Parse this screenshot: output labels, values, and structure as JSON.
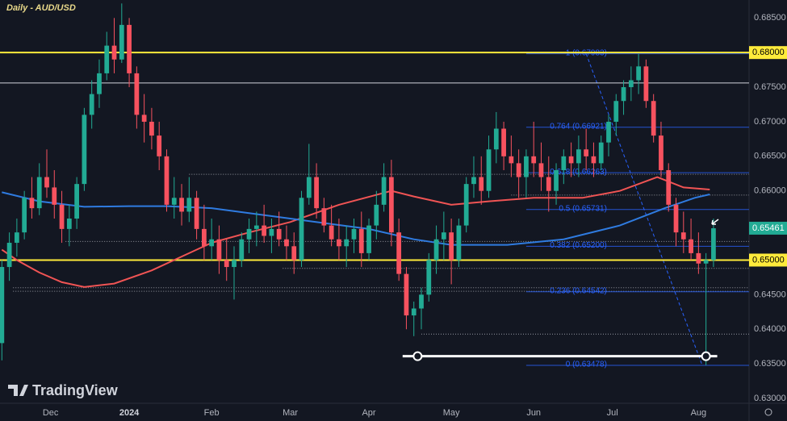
{
  "chart_data": {
    "type": "candlestick",
    "title": "Daily - AUD/USD",
    "up_color": "#22ab94",
    "down_color": "#f7525f",
    "xlim": [
      -0.5,
      199.5
    ],
    "ylim": [
      0.6293,
      0.6876
    ],
    "xticks": [
      {
        "value": 13,
        "label": "Dec"
      },
      {
        "value": 34,
        "label": "2024"
      },
      {
        "value": 56,
        "label": "Feb"
      },
      {
        "value": 77,
        "label": "Mar"
      },
      {
        "value": 98,
        "label": "Apr"
      },
      {
        "value": 120,
        "label": "May"
      },
      {
        "value": 142,
        "label": "Jun"
      },
      {
        "value": 163,
        "label": "Jul"
      },
      {
        "value": 186,
        "label": "Aug"
      }
    ],
    "yticks": [
      {
        "value": 0.685,
        "label": "0.68500"
      },
      {
        "value": 0.675,
        "label": "0.67500"
      },
      {
        "value": 0.67,
        "label": "0.67000"
      },
      {
        "value": 0.665,
        "label": "0.66500"
      },
      {
        "value": 0.66,
        "label": "0.66000"
      },
      {
        "value": 0.645,
        "label": "0.64500"
      },
      {
        "value": 0.64,
        "label": "0.64000"
      },
      {
        "value": 0.635,
        "label": "0.63500"
      },
      {
        "value": 0.63,
        "label": "0.63000"
      }
    ],
    "x": [
      0,
      2,
      4,
      6,
      8,
      10,
      12,
      14,
      16,
      18,
      20,
      22,
      24,
      26,
      28,
      30,
      32,
      34,
      36,
      38,
      40,
      42,
      44,
      46,
      48,
      50,
      52,
      54,
      56,
      58,
      60,
      62,
      64,
      66,
      68,
      70,
      72,
      74,
      76,
      78,
      80,
      82,
      84,
      86,
      88,
      90,
      92,
      94,
      96,
      98,
      100,
      102,
      104,
      106,
      108,
      110,
      112,
      114,
      116,
      118,
      120,
      122,
      124,
      126,
      128,
      130,
      132,
      134,
      136,
      138,
      140,
      142,
      144,
      146,
      148,
      150,
      152,
      154,
      156,
      158,
      160,
      162,
      164,
      166,
      168,
      170,
      172,
      174,
      176,
      178,
      180,
      182,
      184,
      186,
      188,
      190
    ],
    "open": [
      0.638,
      0.649,
      0.6525,
      0.654,
      0.659,
      0.6575,
      0.662,
      0.6605,
      0.658,
      0.6545,
      0.656,
      0.661,
      0.671,
      0.674,
      0.677,
      0.681,
      0.679,
      0.684,
      0.677,
      0.671,
      0.67,
      0.668,
      0.665,
      0.658,
      0.659,
      0.657,
      0.659,
      0.6545,
      0.652,
      0.653,
      0.65,
      0.649,
      0.65,
      0.653,
      0.6545,
      0.655,
      0.6535,
      0.6545,
      0.653,
      0.652,
      0.65,
      0.659,
      0.662,
      0.6575,
      0.655,
      0.653,
      0.652,
      0.653,
      0.6545,
      0.651,
      0.655,
      0.658,
      0.662,
      0.654,
      0.648,
      0.642,
      0.643,
      0.645,
      0.65,
      0.653,
      0.654,
      0.65,
      0.655,
      0.661,
      0.662,
      0.66,
      0.666,
      0.669,
      0.665,
      0.664,
      0.662,
      0.665,
      0.664,
      0.662,
      0.66,
      0.663,
      0.665,
      0.664,
      0.666,
      0.665,
      0.664,
      0.667,
      0.67,
      0.673,
      0.675,
      0.676,
      0.678,
      0.673,
      0.668,
      0.663,
      0.658,
      0.654,
      0.653,
      0.651,
      0.6495,
      0.65
    ],
    "high": [
      0.65,
      0.654,
      0.656,
      0.66,
      0.662,
      0.664,
      0.666,
      0.663,
      0.66,
      0.658,
      0.662,
      0.672,
      0.676,
      0.679,
      0.683,
      0.685,
      0.6871,
      0.685,
      0.678,
      0.674,
      0.672,
      0.67,
      0.666,
      0.662,
      0.661,
      0.662,
      0.66,
      0.658,
      0.656,
      0.655,
      0.653,
      0.652,
      0.654,
      0.656,
      0.657,
      0.658,
      0.656,
      0.657,
      0.655,
      0.654,
      0.66,
      0.6668,
      0.664,
      0.659,
      0.658,
      0.656,
      0.655,
      0.656,
      0.657,
      0.656,
      0.66,
      0.664,
      0.6645,
      0.656,
      0.649,
      0.644,
      0.646,
      0.651,
      0.655,
      0.657,
      0.656,
      0.656,
      0.662,
      0.665,
      0.665,
      0.668,
      0.6714,
      0.67,
      0.668,
      0.666,
      0.666,
      0.67,
      0.667,
      0.665,
      0.664,
      0.666,
      0.667,
      0.668,
      0.669,
      0.667,
      0.668,
      0.671,
      0.674,
      0.676,
      0.678,
      0.6798,
      0.679,
      0.674,
      0.67,
      0.664,
      0.659,
      0.657,
      0.656,
      0.654,
      0.651,
      0.656
    ],
    "low": [
      0.6355,
      0.647,
      0.6505,
      0.653,
      0.656,
      0.6565,
      0.659,
      0.656,
      0.6525,
      0.652,
      0.6545,
      0.66,
      0.669,
      0.672,
      0.676,
      0.677,
      0.6785,
      0.675,
      0.669,
      0.667,
      0.666,
      0.663,
      0.657,
      0.656,
      0.655,
      0.6555,
      0.653,
      0.65,
      0.65,
      0.648,
      0.647,
      0.6443,
      0.649,
      0.651,
      0.652,
      0.6525,
      0.651,
      0.652,
      0.65,
      0.648,
      0.649,
      0.658,
      0.656,
      0.654,
      0.652,
      0.65,
      0.649,
      0.651,
      0.649,
      0.65,
      0.653,
      0.657,
      0.652,
      0.647,
      0.64,
      0.639,
      0.64,
      0.644,
      0.648,
      0.65,
      0.6465,
      0.649,
      0.654,
      0.659,
      0.658,
      0.659,
      0.664,
      0.663,
      0.662,
      0.659,
      0.659,
      0.662,
      0.66,
      0.657,
      0.658,
      0.661,
      0.662,
      0.662,
      0.663,
      0.662,
      0.663,
      0.665,
      0.668,
      0.671,
      0.673,
      0.674,
      0.672,
      0.667,
      0.662,
      0.657,
      0.652,
      0.651,
      0.65,
      0.648,
      0.6348,
      0.649
    ],
    "close": [
      0.649,
      0.6525,
      0.654,
      0.659,
      0.6575,
      0.662,
      0.6605,
      0.658,
      0.6545,
      0.656,
      0.661,
      0.671,
      0.674,
      0.677,
      0.681,
      0.679,
      0.684,
      0.677,
      0.671,
      0.67,
      0.668,
      0.665,
      0.658,
      0.659,
      0.657,
      0.659,
      0.6545,
      0.652,
      0.653,
      0.65,
      0.649,
      0.65,
      0.653,
      0.6545,
      0.655,
      0.6535,
      0.6545,
      0.653,
      0.652,
      0.65,
      0.659,
      0.662,
      0.6575,
      0.655,
      0.653,
      0.652,
      0.653,
      0.6545,
      0.651,
      0.655,
      0.658,
      0.662,
      0.654,
      0.648,
      0.642,
      0.643,
      0.645,
      0.65,
      0.653,
      0.654,
      0.65,
      0.655,
      0.661,
      0.662,
      0.66,
      0.666,
      0.669,
      0.665,
      0.664,
      0.662,
      0.665,
      0.664,
      0.662,
      0.66,
      0.663,
      0.665,
      0.664,
      0.666,
      0.665,
      0.664,
      0.667,
      0.67,
      0.673,
      0.675,
      0.676,
      0.678,
      0.673,
      0.668,
      0.663,
      0.658,
      0.654,
      0.653,
      0.651,
      0.6495,
      0.65,
      0.6546
    ],
    "moving_averages": [
      {
        "color": "#f05454",
        "x": [
          0,
          4,
          10,
          16,
          22,
          30,
          40,
          50,
          56,
          66,
          77,
          90,
          104,
          110,
          120,
          130,
          142,
          155,
          165,
          175,
          182,
          189
        ],
        "values": [
          0.6515,
          0.65,
          0.6482,
          0.6468,
          0.6461,
          0.6466,
          0.6485,
          0.651,
          0.6525,
          0.654,
          0.6555,
          0.658,
          0.66,
          0.6592,
          0.658,
          0.6585,
          0.659,
          0.659,
          0.66,
          0.662,
          0.6605,
          0.6602
        ]
      },
      {
        "color": "#2f7be0",
        "x": [
          0,
          10,
          22,
          34,
          44,
          56,
          77,
          98,
          110,
          120,
          135,
          150,
          165,
          177,
          185,
          189
        ],
        "values": [
          0.6598,
          0.6585,
          0.6577,
          0.6578,
          0.6578,
          0.6575,
          0.656,
          0.6545,
          0.653,
          0.6522,
          0.6522,
          0.653,
          0.655,
          0.6575,
          0.659,
          0.6595
        ]
      }
    ],
    "horizontal_lines": [
      {
        "value": 0.68,
        "label": "0.68000",
        "color": "#ffeb3b",
        "width": 2
      },
      {
        "value": 0.65,
        "label": "0.65000",
        "color": "#ffeb3b",
        "width": 2
      },
      {
        "value": 0.6756,
        "color": "#d1d4dc",
        "width": 1
      }
    ],
    "last_price": {
      "value": 0.65461,
      "label": "0.65461",
      "color": "#22ab94"
    },
    "dotted_levels": [
      {
        "value": 0.6624,
        "start": 50
      },
      {
        "value": 0.6594,
        "start": 136
      },
      {
        "value": 0.6527,
        "start": 17
      },
      {
        "value": 0.6488,
        "start": 75
      },
      {
        "value": 0.646,
        "start": 3
      },
      {
        "value": 0.6455,
        "start": 3
      },
      {
        "value": 0.6393,
        "start": 112
      }
    ],
    "fib": {
      "color": "#2962ff",
      "start": 140,
      "diagonal_x": [
        156,
        187
      ],
      "levels": [
        {
          "value": 0.67983,
          "label": "1 (0.67983)"
        },
        {
          "value": 0.66921,
          "label": "0.764 (0.66921)"
        },
        {
          "value": 0.66263,
          "label": "0.618 (0.66263)"
        },
        {
          "value": 0.65731,
          "label": "0.5 (0.65731)"
        },
        {
          "value": 0.652,
          "label": "0.382 (0.65200)"
        },
        {
          "value": 0.64542,
          "label": "0.236 (0.64542)"
        },
        {
          "value": 0.63478,
          "label": "0 (0.63478)"
        }
      ]
    },
    "support": {
      "value": 0.6361,
      "x": [
        107,
        191
      ],
      "points": [
        111,
        188
      ]
    }
  },
  "brand": "TradingView"
}
